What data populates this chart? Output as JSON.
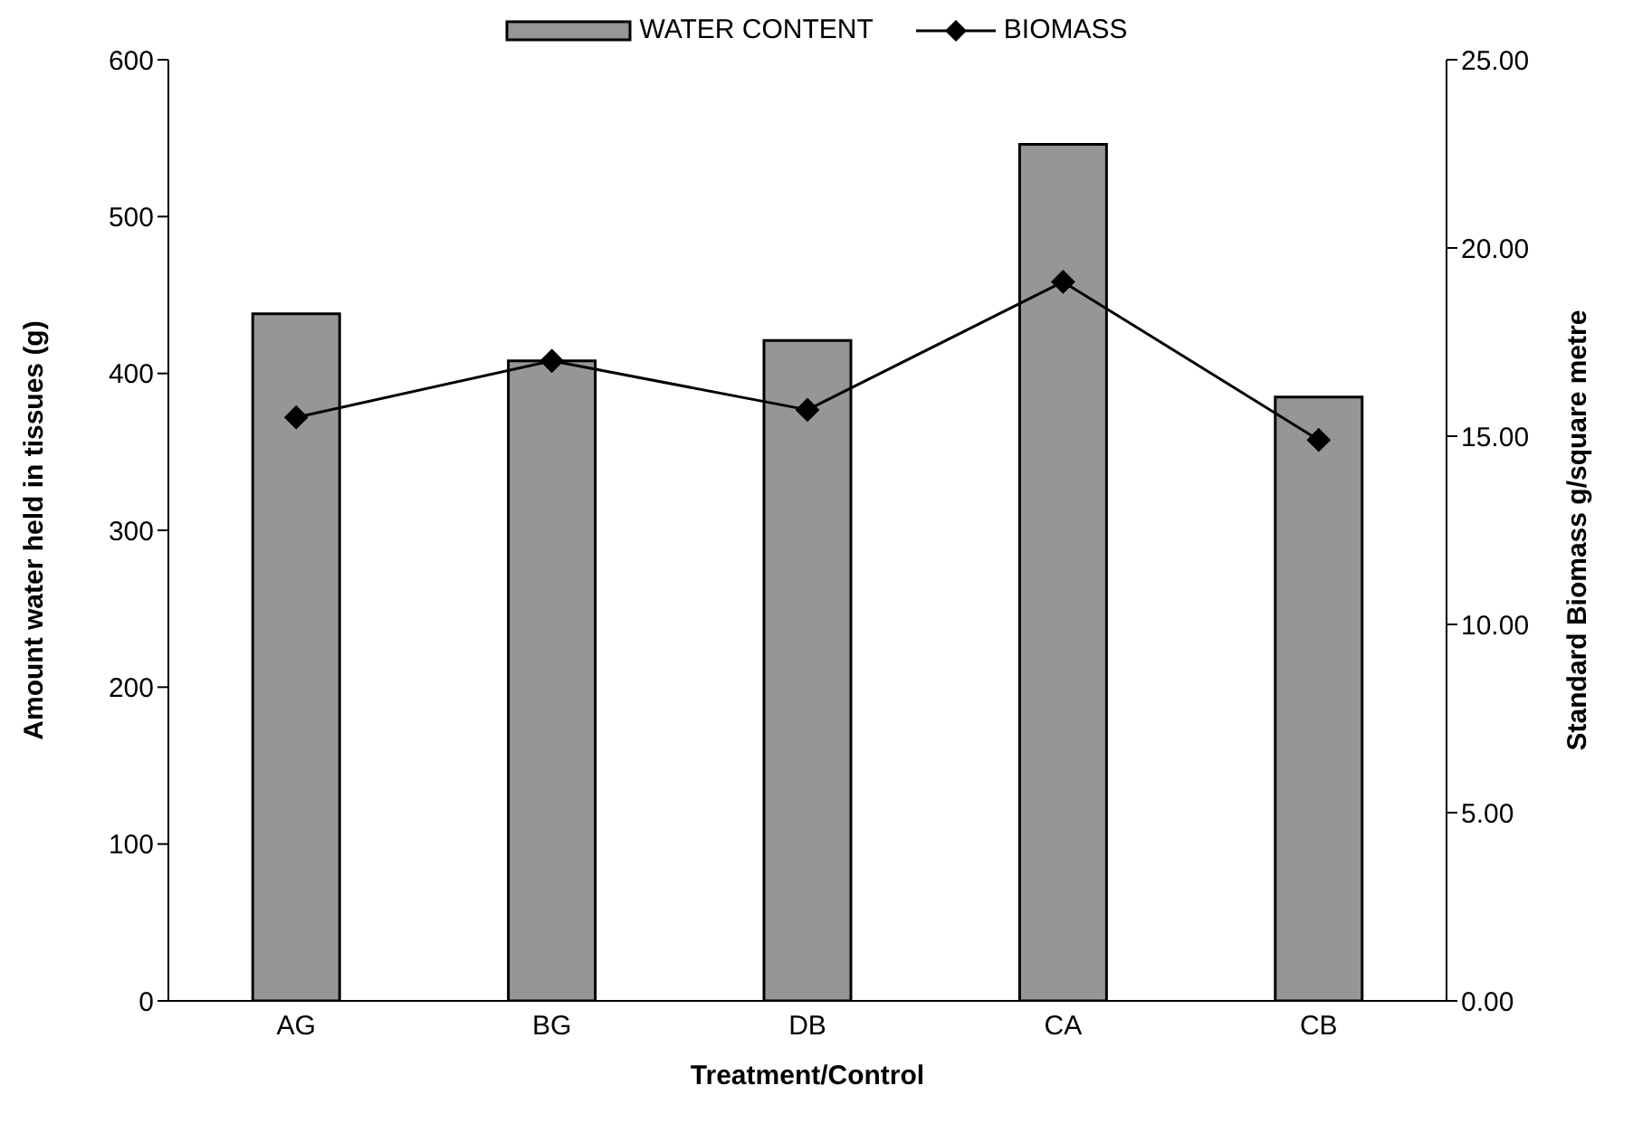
{
  "chart_data": {
    "type": "bar",
    "xlabel": "Treatment/Control",
    "ylabel": "Amount water held in tissues (g)",
    "y2label": "Standard Biomass g/square metre",
    "categories": [
      "AG",
      "BG",
      "DB",
      "CA",
      "CB"
    ],
    "series": [
      {
        "name": "WATER CONTENT",
        "color": "#969696",
        "values": [
          438,
          408,
          421,
          546,
          385
        ]
      },
      {
        "name": "BIOMASS",
        "type": "line",
        "axis": "y2",
        "color": "#000000",
        "marker": "diamond",
        "values": [
          15.5,
          17.0,
          15.7,
          19.1,
          14.9
        ]
      }
    ],
    "ylim": [
      0,
      600
    ],
    "yticks": [
      0,
      100,
      200,
      300,
      400,
      500,
      600
    ],
    "y2lim": [
      0,
      25
    ],
    "y2ticks": [
      {
        "value": 0,
        "label": "0.00"
      },
      {
        "value": 5,
        "label": "5.00"
      },
      {
        "value": 10,
        "label": "10.00"
      },
      {
        "value": 15,
        "label": "15.00"
      },
      {
        "value": 20,
        "label": "20.00"
      },
      {
        "value": 25,
        "label": "25.00"
      }
    ],
    "grid": false,
    "legend": "top"
  }
}
